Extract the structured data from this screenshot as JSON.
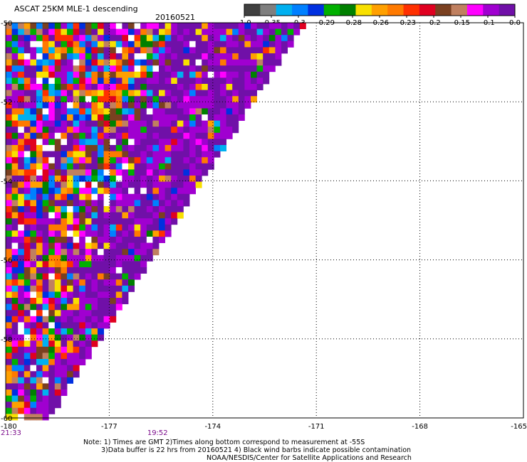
{
  "header": {
    "title": "ASCAT 25KM MLE-1 descending",
    "date": "20160521"
  },
  "colorbar": {
    "colors": [
      "#404040",
      "#7f7f7f",
      "#00b0f0",
      "#0080ff",
      "#0030e0",
      "#00b000",
      "#008000",
      "#f8e000",
      "#ffa000",
      "#ff7a00",
      "#ff3000",
      "#e00020",
      "#7a4020",
      "#c08060",
      "#ff00ff",
      "#a000d0",
      "#7010a8"
    ],
    "labels": [
      "-1.0",
      "-0.35",
      "-0.3",
      "-0.29",
      "-0.28",
      "-0.26",
      "-0.23",
      "-0.2",
      "-0.15",
      "-0.1",
      "0.0"
    ]
  },
  "chart_data": {
    "type": "heatmap",
    "title": "ASCAT 25KM MLE-1 descending",
    "x_ticks": [
      "-180",
      "-177",
      "-174",
      "-171",
      "-168",
      "-165"
    ],
    "y_ticks": [
      "-50",
      "-52",
      "-54",
      "-56",
      "-58",
      "-60"
    ],
    "xlim": [
      -180,
      -165
    ],
    "ylim": [
      -60,
      -50
    ],
    "grid": true,
    "swath_edge": {
      "top_right_lon": -171.3,
      "bottom_left_lon": -178.7
    },
    "time_labels": [
      {
        "text": "21:33",
        "lon": -180
      },
      {
        "text": "19:52",
        "lon": -175.6
      }
    ],
    "value_palette": [
      "#7010a8",
      "#7010a8",
      "#7010a8",
      "#a000d0",
      "#a000d0",
      "#ff00ff",
      "#e00020",
      "#ff3000",
      "#ff7a00",
      "#ffa000",
      "#f8e000",
      "#008000",
      "#00b000",
      "#0030e0",
      "#0080ff",
      "#00b0f0",
      "#7a4020",
      "#c08060",
      "#ffffff"
    ]
  },
  "notes": [
    "Note: 1) Times are GMT 2)Times along bottom correspond to measurement at -55S",
    "3)Data buffer is 22 hrs from 20160521 4) Black wind barbs indicate possible contamination",
    "NOAA/NESDIS/Center for Satellite Applications and Research"
  ]
}
